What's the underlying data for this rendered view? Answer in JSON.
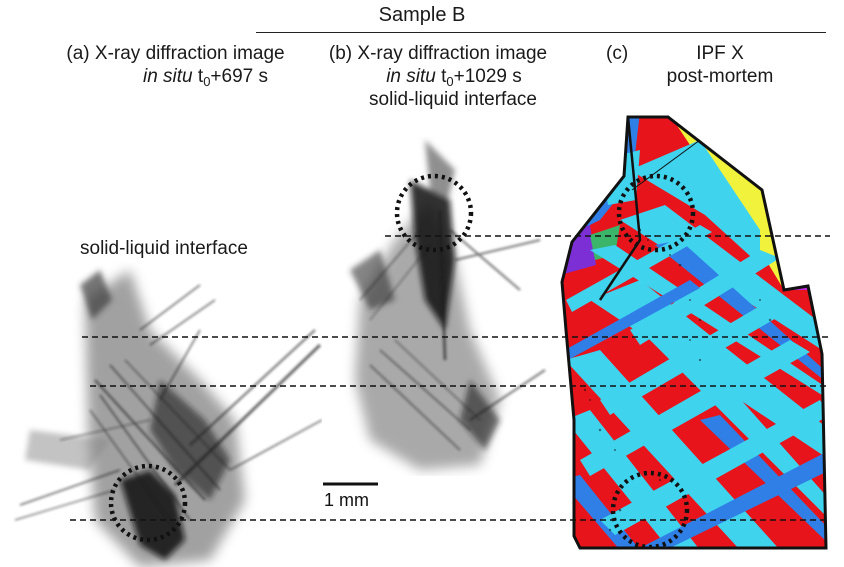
{
  "figure": {
    "title": "Sample B",
    "panel_a": {
      "tag": "(a)",
      "line1": "X-ray diffraction image",
      "line2_italic": "in situ",
      "line2_t": "t",
      "line2_sub": "0",
      "line2_rest": "+697 s",
      "annotation": "solid-liquid interface"
    },
    "panel_b": {
      "tag": "(b)",
      "line1": "X-ray diffraction image",
      "line2_italic": "in situ",
      "line2_t": "t",
      "line2_sub": "0",
      "line2_rest": "+1029 s",
      "line3": "solid-liquid interface",
      "scale_label": "1 mm"
    },
    "panel_c": {
      "tag": "(c)",
      "line1": "IPF X",
      "line2": "post-mortem"
    }
  },
  "colors": {
    "red": "#e8141b",
    "cyan": "#3fd3ee",
    "blue": "#2f7fe6",
    "yellow": "#f1f23c",
    "purple": "#7d2fd6",
    "magenta": "#c22bd9",
    "green": "#3bb56a"
  }
}
